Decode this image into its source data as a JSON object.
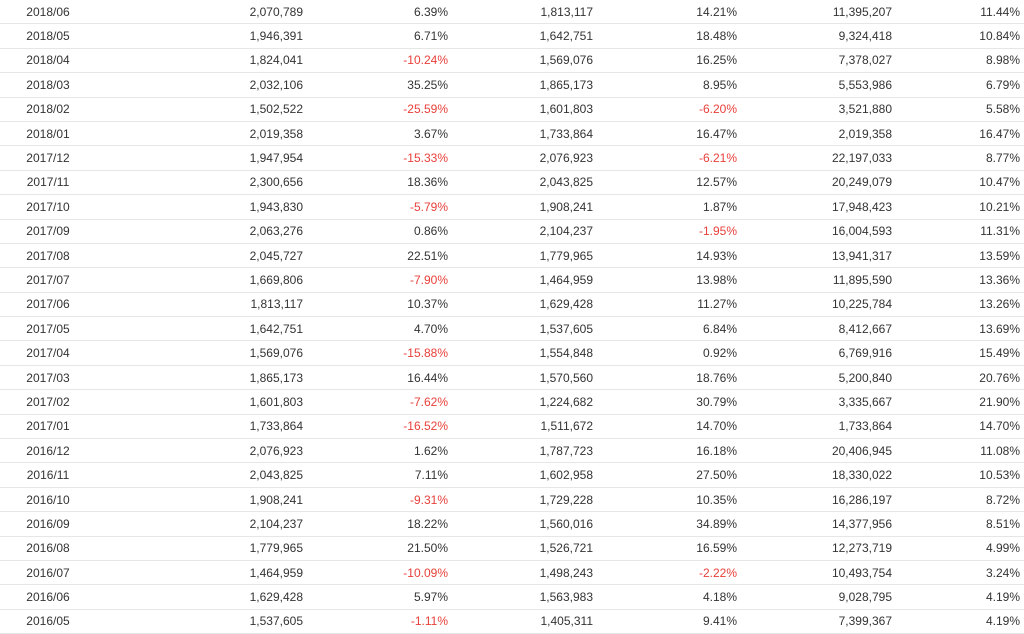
{
  "table": {
    "rows": [
      {
        "month": "2018/06",
        "v1": "2,070,789",
        "p1": "6.39%",
        "v2": "1,813,117",
        "p2": "14.21%",
        "v3": "11,395,207",
        "p3": "11.44%"
      },
      {
        "month": "2018/05",
        "v1": "1,946,391",
        "p1": "6.71%",
        "v2": "1,642,751",
        "p2": "18.48%",
        "v3": "9,324,418",
        "p3": "10.84%"
      },
      {
        "month": "2018/04",
        "v1": "1,824,041",
        "p1": "-10.24%",
        "v2": "1,569,076",
        "p2": "16.25%",
        "v3": "7,378,027",
        "p3": "8.98%"
      },
      {
        "month": "2018/03",
        "v1": "2,032,106",
        "p1": "35.25%",
        "v2": "1,865,173",
        "p2": "8.95%",
        "v3": "5,553,986",
        "p3": "6.79%"
      },
      {
        "month": "2018/02",
        "v1": "1,502,522",
        "p1": "-25.59%",
        "v2": "1,601,803",
        "p2": "-6.20%",
        "v3": "3,521,880",
        "p3": "5.58%"
      },
      {
        "month": "2018/01",
        "v1": "2,019,358",
        "p1": "3.67%",
        "v2": "1,733,864",
        "p2": "16.47%",
        "v3": "2,019,358",
        "p3": "16.47%"
      },
      {
        "month": "2017/12",
        "v1": "1,947,954",
        "p1": "-15.33%",
        "v2": "2,076,923",
        "p2": "-6.21%",
        "v3": "22,197,033",
        "p3": "8.77%"
      },
      {
        "month": "2017/11",
        "v1": "2,300,656",
        "p1": "18.36%",
        "v2": "2,043,825",
        "p2": "12.57%",
        "v3": "20,249,079",
        "p3": "10.47%"
      },
      {
        "month": "2017/10",
        "v1": "1,943,830",
        "p1": "-5.79%",
        "v2": "1,908,241",
        "p2": "1.87%",
        "v3": "17,948,423",
        "p3": "10.21%"
      },
      {
        "month": "2017/09",
        "v1": "2,063,276",
        "p1": "0.86%",
        "v2": "2,104,237",
        "p2": "-1.95%",
        "v3": "16,004,593",
        "p3": "11.31%"
      },
      {
        "month": "2017/08",
        "v1": "2,045,727",
        "p1": "22.51%",
        "v2": "1,779,965",
        "p2": "14.93%",
        "v3": "13,941,317",
        "p3": "13.59%"
      },
      {
        "month": "2017/07",
        "v1": "1,669,806",
        "p1": "-7.90%",
        "v2": "1,464,959",
        "p2": "13.98%",
        "v3": "11,895,590",
        "p3": "13.36%"
      },
      {
        "month": "2017/06",
        "v1": "1,813,117",
        "p1": "10.37%",
        "v2": "1,629,428",
        "p2": "11.27%",
        "v3": "10,225,784",
        "p3": "13.26%"
      },
      {
        "month": "2017/05",
        "v1": "1,642,751",
        "p1": "4.70%",
        "v2": "1,537,605",
        "p2": "6.84%",
        "v3": "8,412,667",
        "p3": "13.69%"
      },
      {
        "month": "2017/04",
        "v1": "1,569,076",
        "p1": "-15.88%",
        "v2": "1,554,848",
        "p2": "0.92%",
        "v3": "6,769,916",
        "p3": "15.49%"
      },
      {
        "month": "2017/03",
        "v1": "1,865,173",
        "p1": "16.44%",
        "v2": "1,570,560",
        "p2": "18.76%",
        "v3": "5,200,840",
        "p3": "20.76%"
      },
      {
        "month": "2017/02",
        "v1": "1,601,803",
        "p1": "-7.62%",
        "v2": "1,224,682",
        "p2": "30.79%",
        "v3": "3,335,667",
        "p3": "21.90%"
      },
      {
        "month": "2017/01",
        "v1": "1,733,864",
        "p1": "-16.52%",
        "v2": "1,511,672",
        "p2": "14.70%",
        "v3": "1,733,864",
        "p3": "14.70%"
      },
      {
        "month": "2016/12",
        "v1": "2,076,923",
        "p1": "1.62%",
        "v2": "1,787,723",
        "p2": "16.18%",
        "v3": "20,406,945",
        "p3": "11.08%"
      },
      {
        "month": "2016/11",
        "v1": "2,043,825",
        "p1": "7.11%",
        "v2": "1,602,958",
        "p2": "27.50%",
        "v3": "18,330,022",
        "p3": "10.53%"
      },
      {
        "month": "2016/10",
        "v1": "1,908,241",
        "p1": "-9.31%",
        "v2": "1,729,228",
        "p2": "10.35%",
        "v3": "16,286,197",
        "p3": "8.72%"
      },
      {
        "month": "2016/09",
        "v1": "2,104,237",
        "p1": "18.22%",
        "v2": "1,560,016",
        "p2": "34.89%",
        "v3": "14,377,956",
        "p3": "8.51%"
      },
      {
        "month": "2016/08",
        "v1": "1,779,965",
        "p1": "21.50%",
        "v2": "1,526,721",
        "p2": "16.59%",
        "v3": "12,273,719",
        "p3": "4.99%"
      },
      {
        "month": "2016/07",
        "v1": "1,464,959",
        "p1": "-10.09%",
        "v2": "1,498,243",
        "p2": "-2.22%",
        "v3": "10,493,754",
        "p3": "3.24%"
      },
      {
        "month": "2016/06",
        "v1": "1,629,428",
        "p1": "5.97%",
        "v2": "1,563,983",
        "p2": "4.18%",
        "v3": "9,028,795",
        "p3": "4.19%"
      },
      {
        "month": "2016/05",
        "v1": "1,537,605",
        "p1": "-1.11%",
        "v2": "1,405,311",
        "p2": "9.41%",
        "v3": "7,399,367",
        "p3": "4.19%"
      }
    ],
    "colors": {
      "text": "#333333",
      "negative": "#e8403a",
      "row_border": "#e6e6e6"
    }
  }
}
